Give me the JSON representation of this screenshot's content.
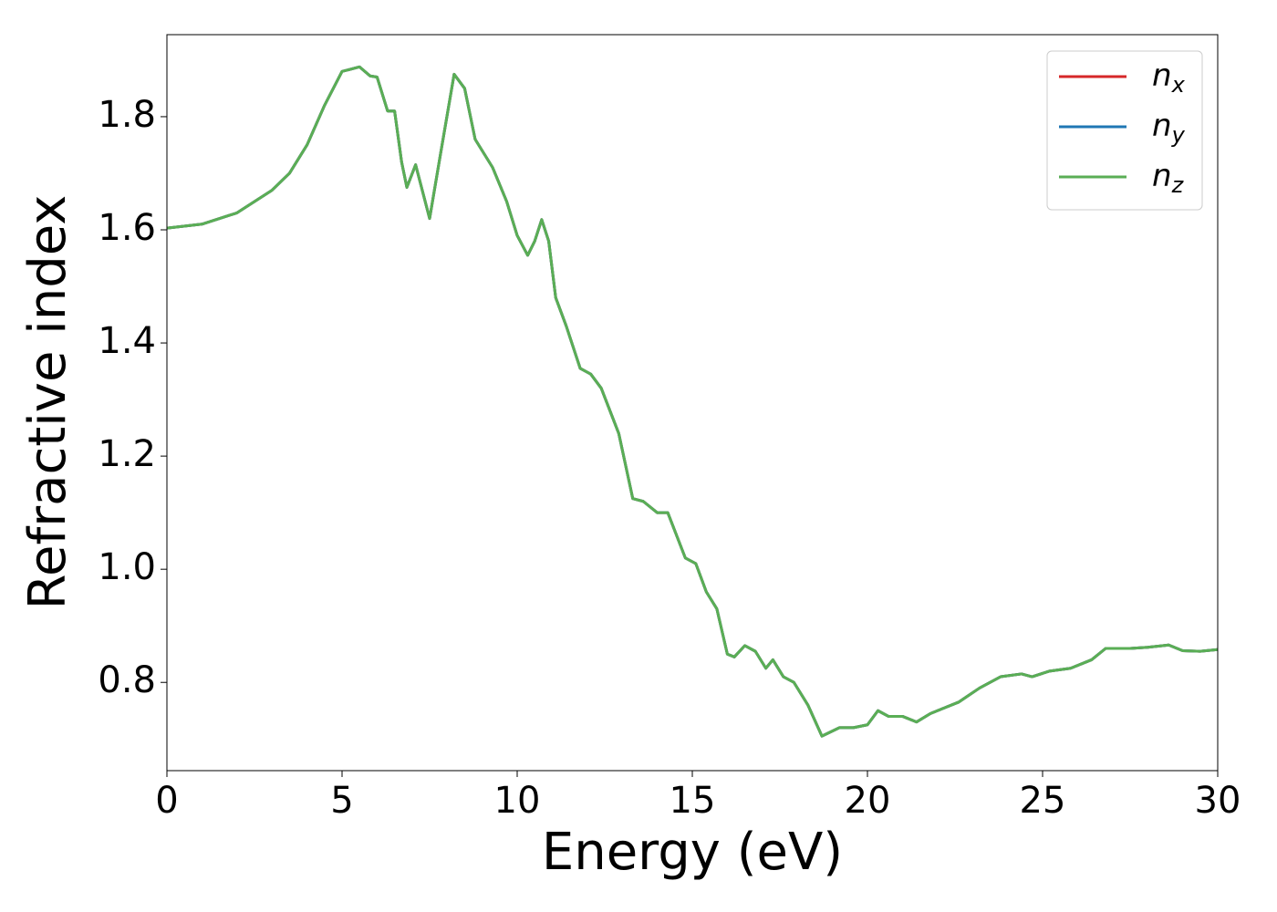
{
  "chart_data": {
    "type": "line",
    "xlabel": "Energy (eV)",
    "ylabel": "Refractive index",
    "x": [
      0,
      1,
      2,
      3,
      3.5,
      4,
      4.5,
      5,
      5.5,
      5.8,
      6.0,
      6.3,
      6.5,
      6.7,
      6.85,
      7.1,
      7.5,
      7.8,
      8.2,
      8.5,
      8.8,
      9.3,
      9.7,
      10.0,
      10.3,
      10.5,
      10.7,
      10.9,
      11.1,
      11.4,
      11.8,
      12.1,
      12.4,
      12.9,
      13.3,
      13.6,
      14.0,
      14.3,
      14.8,
      15.1,
      15.4,
      15.7,
      16.0,
      16.2,
      16.5,
      16.8,
      17.1,
      17.3,
      17.6,
      17.9,
      18.3,
      18.7,
      19.2,
      19.6,
      20.0,
      20.3,
      20.6,
      21.0,
      21.4,
      21.8,
      22.2,
      22.6,
      23.2,
      23.8,
      24.4,
      24.7,
      25.2,
      25.8,
      26.4,
      26.8,
      27.5,
      28.0,
      28.6,
      29.0,
      29.5,
      30.0
    ],
    "series": [
      {
        "name": "nx",
        "color": "#d62728",
        "values": [
          1.603,
          1.61,
          1.63,
          1.67,
          1.7,
          1.75,
          1.82,
          1.88,
          1.888,
          1.872,
          1.87,
          1.81,
          1.81,
          1.72,
          1.675,
          1.715,
          1.62,
          1.73,
          1.875,
          1.85,
          1.76,
          1.71,
          1.65,
          1.59,
          1.555,
          1.58,
          1.618,
          1.58,
          1.48,
          1.43,
          1.355,
          1.345,
          1.32,
          1.24,
          1.125,
          1.12,
          1.1,
          1.1,
          1.02,
          1.01,
          0.96,
          0.93,
          0.85,
          0.845,
          0.865,
          0.855,
          0.825,
          0.84,
          0.81,
          0.8,
          0.76,
          0.705,
          0.72,
          0.72,
          0.725,
          0.75,
          0.74,
          0.74,
          0.73,
          0.745,
          0.755,
          0.765,
          0.79,
          0.81,
          0.815,
          0.81,
          0.82,
          0.825,
          0.84,
          0.86,
          0.86,
          0.862,
          0.866,
          0.856,
          0.855,
          0.858
        ]
      },
      {
        "name": "ny",
        "color": "#1f77b4",
        "values": [
          1.603,
          1.61,
          1.63,
          1.67,
          1.7,
          1.75,
          1.82,
          1.88,
          1.888,
          1.872,
          1.87,
          1.81,
          1.81,
          1.72,
          1.675,
          1.715,
          1.62,
          1.73,
          1.875,
          1.85,
          1.76,
          1.71,
          1.65,
          1.59,
          1.555,
          1.58,
          1.618,
          1.58,
          1.48,
          1.43,
          1.355,
          1.345,
          1.32,
          1.24,
          1.125,
          1.12,
          1.1,
          1.1,
          1.02,
          1.01,
          0.96,
          0.93,
          0.85,
          0.845,
          0.865,
          0.855,
          0.825,
          0.84,
          0.81,
          0.8,
          0.76,
          0.705,
          0.72,
          0.72,
          0.725,
          0.75,
          0.74,
          0.74,
          0.73,
          0.745,
          0.755,
          0.765,
          0.79,
          0.81,
          0.815,
          0.81,
          0.82,
          0.825,
          0.84,
          0.86,
          0.86,
          0.862,
          0.866,
          0.856,
          0.855,
          0.858
        ]
      },
      {
        "name": "nz",
        "color": "#5aae55",
        "values": [
          1.603,
          1.61,
          1.63,
          1.67,
          1.7,
          1.75,
          1.82,
          1.88,
          1.888,
          1.872,
          1.87,
          1.81,
          1.81,
          1.72,
          1.675,
          1.715,
          1.62,
          1.73,
          1.875,
          1.85,
          1.76,
          1.71,
          1.65,
          1.59,
          1.555,
          1.58,
          1.618,
          1.58,
          1.48,
          1.43,
          1.355,
          1.345,
          1.32,
          1.24,
          1.125,
          1.12,
          1.1,
          1.1,
          1.02,
          1.01,
          0.96,
          0.93,
          0.85,
          0.845,
          0.865,
          0.855,
          0.825,
          0.84,
          0.81,
          0.8,
          0.76,
          0.705,
          0.72,
          0.72,
          0.725,
          0.75,
          0.74,
          0.74,
          0.73,
          0.745,
          0.755,
          0.765,
          0.79,
          0.81,
          0.815,
          0.81,
          0.82,
          0.825,
          0.84,
          0.86,
          0.86,
          0.862,
          0.866,
          0.856,
          0.855,
          0.858
        ]
      }
    ],
    "xlim": [
      0,
      30
    ],
    "xticks": [
      0,
      5,
      10,
      15,
      20,
      25,
      30
    ],
    "ylim": [
      0.644,
      1.945
    ],
    "yticks": [
      0.8,
      {
        "value": 1,
        "label": "1.0"
      },
      1.2,
      1.4,
      1.6,
      1.8
    ],
    "grid": false,
    "legend": "upper right"
  }
}
